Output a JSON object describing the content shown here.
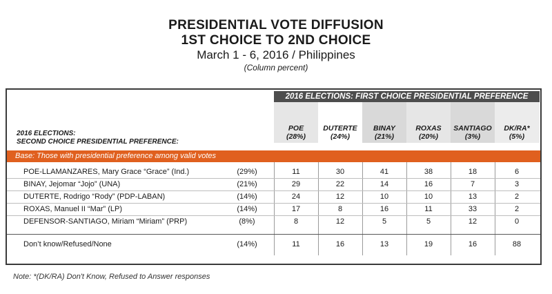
{
  "title": {
    "line1": "PRESIDENTIAL VOTE DIFFUSION",
    "line2": "1ST CHOICE TO 2ND CHOICE",
    "line3": "March 1 - 6, 2016 / Philippines",
    "line4": "(Column percent)"
  },
  "table": {
    "group_header": "2016 ELECTIONS: FIRST CHOICE PRESIDENTIAL PREFERENCE",
    "row_header_line1": "2016 ELECTIONS:",
    "row_header_line2": "SECOND CHOICE PRESIDENTIAL PREFERENCE:",
    "columns": [
      {
        "name": "POE",
        "pct": "(28%)"
      },
      {
        "name": "DUTERTE",
        "pct": "(24%)"
      },
      {
        "name": "BINAY",
        "pct": "(21%)"
      },
      {
        "name": "ROXAS",
        "pct": "(20%)"
      },
      {
        "name": "SANTIAGO",
        "pct": "(3%)"
      },
      {
        "name": "DK/RA*",
        "pct": "(5%)"
      }
    ],
    "base_label": "Base: Those with presidential preference among valid votes",
    "rows": [
      {
        "label": "POE-LLAMANZARES, Mary Grace “Grace” (Ind.)",
        "pct": "(29%)",
        "values": [
          "11",
          "30",
          "41",
          "38",
          "18",
          "6"
        ]
      },
      {
        "label": "BINAY, Jejomar “Jojo” (UNA)",
        "pct": "(21%)",
        "values": [
          "29",
          "22",
          "14",
          "16",
          "7",
          "3"
        ]
      },
      {
        "label": "DUTERTE, Rodrigo “Rody” (PDP-LABAN)",
        "pct": "(14%)",
        "values": [
          "24",
          "12",
          "10",
          "10",
          "13",
          "2"
        ]
      },
      {
        "label": "ROXAS, Manuel II “Mar” (LP)",
        "pct": "(14%)",
        "values": [
          "17",
          "8",
          "16",
          "11",
          "33",
          "2"
        ]
      },
      {
        "label": "DEFENSOR-SANTIAGO, Miriam “Miriam” (PRP)",
        "pct": "(8%)",
        "values": [
          "8",
          "12",
          "5",
          "5",
          "12",
          "0"
        ]
      }
    ],
    "dk_row": {
      "label": "Don’t know/Refused/None",
      "pct": "(14%)",
      "values": [
        "11",
        "16",
        "13",
        "19",
        "16",
        "88"
      ]
    }
  },
  "note": "Note: *(DK/RA) Don't Know, Refused to Answer responses"
}
